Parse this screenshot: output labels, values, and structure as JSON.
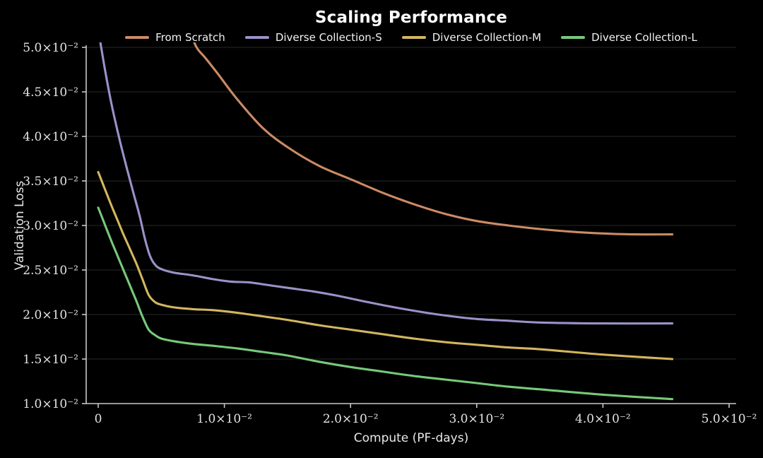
{
  "chart_data": {
    "type": "line",
    "title": "Scaling Performance",
    "xlabel": "Compute (PF-days)",
    "ylabel": "Validation Loss",
    "background_color": "#000000",
    "grid_color": "#272727",
    "axis_color": "#c9c9c9",
    "text_color": "#e8e8e8",
    "grid": "horizontal-only",
    "legend_position": "top-center",
    "xlim": [
      -0.001,
      0.0505
    ],
    "ylim": [
      0.01,
      0.05
    ],
    "x_ticks": [
      {
        "value": 0,
        "label": "0"
      },
      {
        "value": 0.01,
        "label": "1.0×10⁻²"
      },
      {
        "value": 0.02,
        "label": "2.0×10⁻²"
      },
      {
        "value": 0.03,
        "label": "3.0×10⁻²"
      },
      {
        "value": 0.04,
        "label": "4.0×10⁻²"
      },
      {
        "value": 0.05,
        "label": "5.0×10⁻²"
      }
    ],
    "y_ticks": [
      {
        "value": 0.01,
        "label": "1.0×10⁻²"
      },
      {
        "value": 0.015,
        "label": "1.5×10⁻²"
      },
      {
        "value": 0.02,
        "label": "2.0×10⁻²"
      },
      {
        "value": 0.025,
        "label": "2.5×10⁻²"
      },
      {
        "value": 0.03,
        "label": "3.0×10⁻²"
      },
      {
        "value": 0.035,
        "label": "3.5×10⁻²"
      },
      {
        "value": 0.04,
        "label": "4.0×10⁻²"
      },
      {
        "value": 0.045,
        "label": "4.5×10⁻²"
      },
      {
        "value": 0.05,
        "label": "5.0×10⁻²"
      }
    ],
    "series": [
      {
        "name": "From Scratch",
        "color": "#CC8B64",
        "x": [
          0.0072,
          0.0078,
          0.0085,
          0.0095,
          0.011,
          0.013,
          0.015,
          0.0175,
          0.02,
          0.0225,
          0.025,
          0.0275,
          0.03,
          0.0325,
          0.035,
          0.0375,
          0.04,
          0.0425,
          0.0455
        ],
        "y": [
          0.052,
          0.05,
          0.0488,
          0.047,
          0.0442,
          0.041,
          0.0388,
          0.0367,
          0.0352,
          0.0337,
          0.0324,
          0.0313,
          0.0305,
          0.03,
          0.0296,
          0.0293,
          0.0291,
          0.029,
          0.029
        ]
      },
      {
        "name": "Diverse Collection-S",
        "color": "#9E90C8",
        "x": [
          0,
          0.0005,
          0.001,
          0.0016,
          0.0022,
          0.0028,
          0.0033,
          0.0037,
          0.0041,
          0.0045,
          0.005,
          0.006,
          0.0075,
          0.009,
          0.0105,
          0.012,
          0.0135,
          0.015,
          0.017,
          0.019,
          0.021,
          0.0235,
          0.026,
          0.028,
          0.03,
          0.0325,
          0.035,
          0.04,
          0.0455
        ],
        "y": [
          0.052,
          0.0478,
          0.044,
          0.0402,
          0.0368,
          0.0336,
          0.031,
          0.0285,
          0.0266,
          0.0256,
          0.0251,
          0.0247,
          0.0244,
          0.024,
          0.0237,
          0.0236,
          0.0233,
          0.023,
          0.0226,
          0.0221,
          0.0215,
          0.0208,
          0.0202,
          0.0198,
          0.0195,
          0.0193,
          0.0191,
          0.019,
          0.019
        ]
      },
      {
        "name": "Diverse Collection-M",
        "color": "#D3B65F",
        "x": [
          0,
          0.0005,
          0.001,
          0.0015,
          0.002,
          0.0025,
          0.003,
          0.0035,
          0.004,
          0.0045,
          0.005,
          0.006,
          0.0075,
          0.009,
          0.011,
          0.013,
          0.015,
          0.0175,
          0.02,
          0.0225,
          0.025,
          0.0275,
          0.03,
          0.0325,
          0.035,
          0.04,
          0.0455
        ],
        "y": [
          0.036,
          0.0342,
          0.0324,
          0.0307,
          0.029,
          0.0274,
          0.0258,
          0.024,
          0.0222,
          0.0214,
          0.0211,
          0.0208,
          0.0206,
          0.0205,
          0.0202,
          0.0198,
          0.0194,
          0.0188,
          0.0183,
          0.0178,
          0.0173,
          0.0169,
          0.0166,
          0.0163,
          0.0161,
          0.0155,
          0.015
        ]
      },
      {
        "name": "Diverse Collection-L",
        "color": "#77C97B",
        "x": [
          0,
          0.0005,
          0.001,
          0.0015,
          0.002,
          0.0025,
          0.003,
          0.0035,
          0.004,
          0.0045,
          0.005,
          0.006,
          0.0075,
          0.009,
          0.011,
          0.013,
          0.015,
          0.0175,
          0.02,
          0.0225,
          0.025,
          0.0275,
          0.03,
          0.0325,
          0.035,
          0.04,
          0.0455
        ],
        "y": [
          0.032,
          0.0302,
          0.0284,
          0.0267,
          0.025,
          0.0233,
          0.0216,
          0.0198,
          0.0183,
          0.0177,
          0.0173,
          0.017,
          0.0167,
          0.0165,
          0.0162,
          0.0158,
          0.0154,
          0.0147,
          0.0141,
          0.0136,
          0.0131,
          0.0127,
          0.0123,
          0.0119,
          0.0116,
          0.011,
          0.0105
        ]
      }
    ]
  }
}
